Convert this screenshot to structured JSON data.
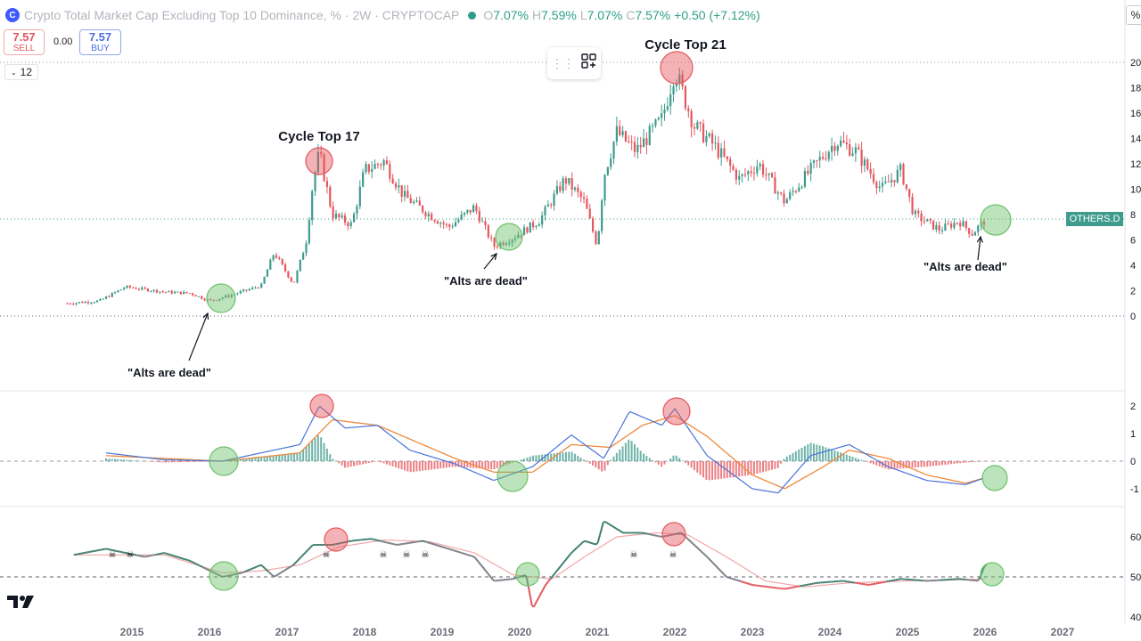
{
  "header": {
    "title": "Crypto Total Market Cap Excluding Top 10 Dominance, % · 2W · CRYPTOCAP",
    "open_label": "O",
    "open": "7.07%",
    "high_label": "H",
    "high": "7.59%",
    "low_label": "L",
    "low": "7.07%",
    "close_label": "C",
    "close": "7.57%",
    "change": "+0.50 (+7.12%)"
  },
  "trade": {
    "sell_value": "7.57",
    "sell_label": "SELL",
    "spread": "0.00",
    "buy_value": "7.57",
    "buy_label": "BUY"
  },
  "interval_value": "12",
  "percent_button": "%",
  "symbol_badge": "OTHERS.D",
  "colors": {
    "up": "#3f9b8c",
    "down": "#e5575e",
    "macd": "#4a73d9",
    "signal": "#ee8a3c",
    "rsi": "#3f7f6f",
    "rsi_ma": "#f3a7a8"
  },
  "icons": [
    "drag-handle-icon",
    "add-layout-icon",
    "tradingview-logo-icon",
    "skull-icon"
  ],
  "chart_data": [
    {
      "type": "candlestick",
      "pane": "price",
      "series_name": "OTHERS.D",
      "x_ticks": [
        "2015",
        "2016",
        "2017",
        "2018",
        "2019",
        "2020",
        "2021",
        "2022",
        "2023",
        "2024",
        "2025",
        "2026",
        "2027"
      ],
      "y_ticks": [
        20,
        18,
        16,
        14,
        12,
        10,
        8,
        6,
        4,
        2,
        0
      ],
      "ylim": [
        -4,
        22
      ],
      "last_value": 7.57,
      "approx_path": [
        [
          "2014-03",
          1.0
        ],
        [
          "2014-08",
          1.2
        ],
        [
          "2014-12",
          2.3
        ],
        [
          "2015-06",
          1.9
        ],
        [
          "2015-10",
          1.8
        ],
        [
          "2016-01",
          1.2
        ],
        [
          "2016-04",
          1.6
        ],
        [
          "2016-09",
          2.4
        ],
        [
          "2016-11",
          5.0
        ],
        [
          "2017-02",
          2.5
        ],
        [
          "2017-03",
          4.2
        ],
        [
          "2017-04",
          6.0
        ],
        [
          "2017-05",
          10.5
        ],
        [
          "2017-06",
          12.9
        ],
        [
          "2017-08",
          8.0
        ],
        [
          "2017-11",
          7.2
        ],
        [
          "2018-01",
          11.5
        ],
        [
          "2018-04",
          12.2
        ],
        [
          "2018-07",
          9.5
        ],
        [
          "2018-11",
          8.0
        ],
        [
          "2019-02",
          7.0
        ],
        [
          "2019-06",
          8.6
        ],
        [
          "2019-09",
          5.5
        ],
        [
          "2019-12",
          6.2
        ],
        [
          "2020-04",
          7.5
        ],
        [
          "2020-08",
          10.8
        ],
        [
          "2020-11",
          9.0
        ],
        [
          "2021-01",
          5.5
        ],
        [
          "2021-02",
          11.0
        ],
        [
          "2021-04",
          14.5
        ],
        [
          "2021-07",
          13.0
        ],
        [
          "2021-11",
          15.5
        ],
        [
          "2022-01",
          19.4
        ],
        [
          "2022-04",
          15.0
        ],
        [
          "2022-07",
          13.5
        ],
        [
          "2022-11",
          10.8
        ],
        [
          "2023-02",
          12.0
        ],
        [
          "2023-06",
          9.0
        ],
        [
          "2023-10",
          11.5
        ],
        [
          "2024-02",
          13.8
        ],
        [
          "2024-05",
          13.0
        ],
        [
          "2024-09",
          10.0
        ],
        [
          "2024-12",
          11.5
        ],
        [
          "2025-02",
          8.0
        ],
        [
          "2025-06",
          6.8
        ],
        [
          "2025-09",
          7.5
        ],
        [
          "2025-11",
          6.5
        ],
        [
          "2026-01",
          7.57
        ]
      ],
      "annotations": {
        "cycle_top_17": "Cycle Top 17",
        "cycle_top_21": "Cycle Top 21",
        "alts_dead_1": "\"Alts are dead\"",
        "alts_dead_2": "\"Alts are dead\"",
        "alts_dead_3": "\"Alts are dead\""
      }
    },
    {
      "type": "macd",
      "pane": "macd",
      "y_ticks": [
        2,
        1,
        0,
        -1
      ],
      "ylim": [
        -1.3,
        2.6
      ],
      "macd": [
        [
          "2014-09",
          0.3
        ],
        [
          "2015-06",
          0.05
        ],
        [
          "2016-03",
          0.0
        ],
        [
          "2016-09",
          0.3
        ],
        [
          "2017-03",
          0.6
        ],
        [
          "2017-06",
          2.0
        ],
        [
          "2017-10",
          1.2
        ],
        [
          "2018-03",
          1.3
        ],
        [
          "2018-08",
          0.4
        ],
        [
          "2019-03",
          -0.1
        ],
        [
          "2019-09",
          -0.7
        ],
        [
          "2020-03",
          -0.2
        ],
        [
          "2020-09",
          0.95
        ],
        [
          "2021-02",
          0.1
        ],
        [
          "2021-06",
          1.8
        ],
        [
          "2021-11",
          1.3
        ],
        [
          "2022-01",
          1.9
        ],
        [
          "2022-06",
          0.2
        ],
        [
          "2023-01",
          -1.0
        ],
        [
          "2023-05",
          -1.15
        ],
        [
          "2023-10",
          0.2
        ],
        [
          "2024-04",
          0.6
        ],
        [
          "2024-10",
          -0.2
        ],
        [
          "2025-04",
          -0.7
        ],
        [
          "2025-10",
          -0.85
        ],
        [
          "2026-01",
          -0.6
        ]
      ],
      "signal": [
        [
          "2014-09",
          0.2
        ],
        [
          "2015-06",
          0.1
        ],
        [
          "2016-03",
          0.0
        ],
        [
          "2016-09",
          0.15
        ],
        [
          "2017-03",
          0.3
        ],
        [
          "2017-08",
          1.5
        ],
        [
          "2018-03",
          1.3
        ],
        [
          "2018-08",
          0.8
        ],
        [
          "2019-03",
          0.1
        ],
        [
          "2019-09",
          -0.4
        ],
        [
          "2020-03",
          -0.4
        ],
        [
          "2020-09",
          0.6
        ],
        [
          "2021-03",
          0.5
        ],
        [
          "2021-08",
          1.3
        ],
        [
          "2022-01",
          1.65
        ],
        [
          "2022-06",
          0.9
        ],
        [
          "2023-01",
          -0.5
        ],
        [
          "2023-06",
          -1.0
        ],
        [
          "2023-12",
          -0.2
        ],
        [
          "2024-04",
          0.4
        ],
        [
          "2024-10",
          0.1
        ],
        [
          "2025-04",
          -0.5
        ],
        [
          "2025-10",
          -0.8
        ],
        [
          "2026-01",
          -0.6
        ]
      ]
    },
    {
      "type": "line",
      "pane": "rsi",
      "y_ticks": [
        60,
        50,
        40
      ],
      "ylim": [
        38,
        66
      ],
      "rsi": [
        [
          "2014-04",
          55.5
        ],
        [
          "2014-09",
          57
        ],
        [
          "2015-03",
          55
        ],
        [
          "2015-06",
          56
        ],
        [
          "2015-10",
          54
        ],
        [
          "2016-03",
          50
        ],
        [
          "2016-06",
          51
        ],
        [
          "2016-09",
          53
        ],
        [
          "2016-11",
          50
        ],
        [
          "2017-02",
          53
        ],
        [
          "2017-05",
          58
        ],
        [
          "2017-08",
          58
        ],
        [
          "2017-11",
          59
        ],
        [
          "2018-02",
          59.5
        ],
        [
          "2018-06",
          58
        ],
        [
          "2018-10",
          59
        ],
        [
          "2019-02",
          57
        ],
        [
          "2019-06",
          55
        ],
        [
          "2019-09",
          49
        ],
        [
          "2019-12",
          49.5
        ],
        [
          "2020-02",
          50.5
        ],
        [
          "2020-03",
          42
        ],
        [
          "2020-05",
          48
        ],
        [
          "2020-09",
          56
        ],
        [
          "2020-11",
          59
        ],
        [
          "2021-01",
          58
        ],
        [
          "2021-02",
          64
        ],
        [
          "2021-05",
          61
        ],
        [
          "2021-08",
          61
        ],
        [
          "2021-11",
          60
        ],
        [
          "2022-02",
          61
        ],
        [
          "2022-06",
          55
        ],
        [
          "2022-09",
          50
        ],
        [
          "2023-01",
          48
        ],
        [
          "2023-06",
          47
        ],
        [
          "2023-11",
          48.5
        ],
        [
          "2024-03",
          49
        ],
        [
          "2024-07",
          48
        ],
        [
          "2024-12",
          49.5
        ],
        [
          "2025-04",
          49
        ],
        [
          "2025-09",
          49.5
        ],
        [
          "2025-12",
          49
        ],
        [
          "2026-01",
          53
        ]
      ],
      "rsi_ma": [
        [
          "2014-04",
          55.5
        ],
        [
          "2015-06",
          55.5
        ],
        [
          "2016-03",
          51
        ],
        [
          "2016-09",
          51.5
        ],
        [
          "2017-03",
          53
        ],
        [
          "2017-09",
          57.5
        ],
        [
          "2018-04",
          59.2
        ],
        [
          "2018-11",
          58.8
        ],
        [
          "2019-06",
          56
        ],
        [
          "2019-12",
          50.5
        ],
        [
          "2020-06",
          49.5
        ],
        [
          "2020-11",
          55
        ],
        [
          "2021-04",
          60
        ],
        [
          "2021-10",
          61
        ],
        [
          "2022-03",
          60.5
        ],
        [
          "2022-09",
          55
        ],
        [
          "2023-03",
          49
        ],
        [
          "2023-09",
          47.5
        ],
        [
          "2024-04",
          48.5
        ],
        [
          "2025-01",
          49
        ],
        [
          "2025-09",
          49.3
        ],
        [
          "2026-01",
          49.5
        ]
      ]
    }
  ]
}
